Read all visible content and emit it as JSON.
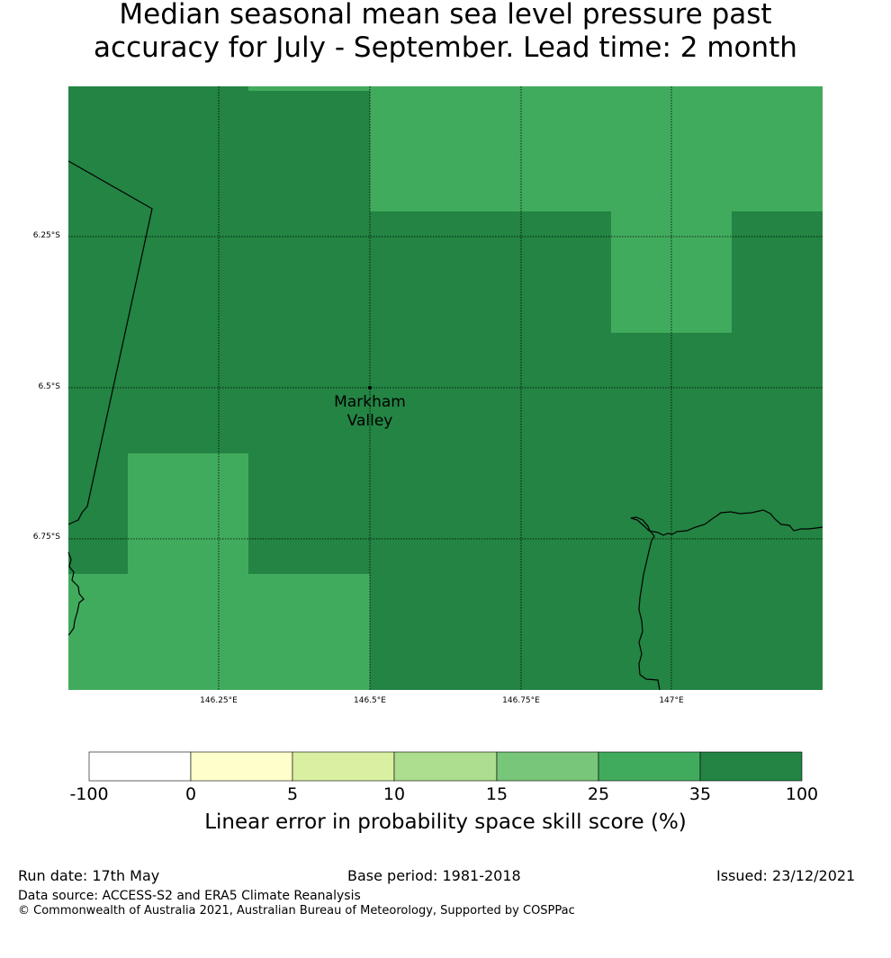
{
  "title": {
    "line1": "Median seasonal mean sea level pressure past",
    "line2": "accuracy for July - September. Lead time: 2 month"
  },
  "map": {
    "lat_labels": [
      "6.25°S",
      "6.5°S",
      "6.75°S"
    ],
    "lon_labels": [
      "146.25°E",
      "146.5°E",
      "146.75°E",
      "147°E"
    ],
    "place": {
      "name_line1": "Markham",
      "name_line2": "Valley"
    },
    "cells": [
      {
        "lon": [
          146.0,
          146.3
        ],
        "lat": [
          -6.0,
          -6.0
        ],
        "class": "35-100"
      },
      {
        "lon": [
          146.3,
          146.5
        ],
        "lat": [
          -6.0,
          -6.0
        ],
        "class": "25-35"
      },
      {
        "lon": [
          146.5,
          147.25
        ],
        "lat": [
          -6.0,
          -6.2
        ],
        "class": "25-35"
      },
      {
        "lon": [
          146.9,
          147.1
        ],
        "lat": [
          -6.2,
          -6.4
        ],
        "class": "25-35"
      },
      {
        "lon": [
          146.1,
          146.3
        ],
        "lat": [
          -6.6,
          -6.8
        ],
        "class": "25-35"
      },
      {
        "lon": [
          146.0,
          146.5
        ],
        "lat": [
          -6.8,
          -7.0
        ],
        "class": "25-35"
      }
    ]
  },
  "colorbar": {
    "ticks": [
      "-100",
      "0",
      "5",
      "10",
      "15",
      "25",
      "35",
      "100"
    ],
    "colors": [
      "#ffffff",
      "#ffffcc",
      "#d9f0a3",
      "#addd8e",
      "#78c679",
      "#41ab5d",
      "#238443"
    ],
    "label": "Linear error in probability space skill score (%)"
  },
  "footer": {
    "run_date": "Run date: 17th May",
    "base_period": "Base period: 1981-2018",
    "issued": "Issued: 23/12/2021",
    "data_source": "Data source: ACCESS-S2 and ERA5 Climate Reanalysis",
    "copyright": "© Commonwealth of Australia 2021, Australian Bureau of Meteorology, Supported by COSPPac"
  }
}
